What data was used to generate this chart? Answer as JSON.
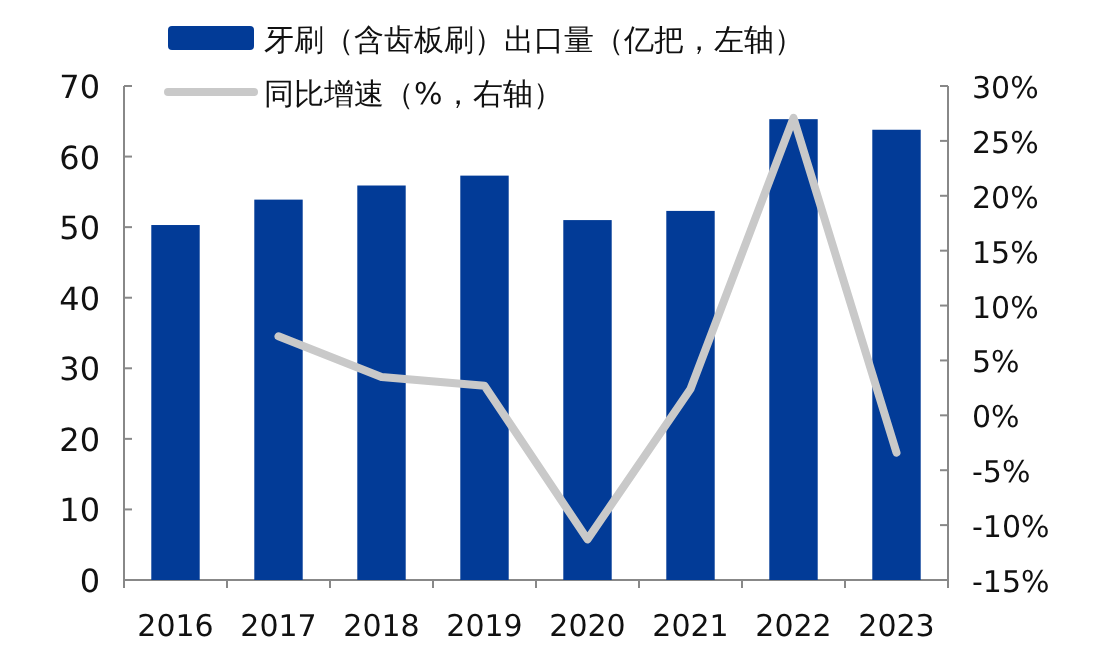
{
  "chart_data": {
    "type": "bar",
    "categories": [
      "2016",
      "2017",
      "2018",
      "2019",
      "2020",
      "2021",
      "2022",
      "2023"
    ],
    "series": [
      {
        "name": "牙刷（含齿板刷）出口量（亿把，左轴）",
        "color": "#023b97",
        "values": [
          50.3,
          53.9,
          55.9,
          57.3,
          51.0,
          52.3,
          65.3,
          63.8
        ]
      },
      {
        "name": "同比增速（%，右轴）",
        "type": "line",
        "axis": "y2",
        "color": "#c9c9c9",
        "values": [
          null,
          7.2,
          3.5,
          2.7,
          -11.3,
          2.4,
          27.1,
          -3.4
        ]
      }
    ],
    "ylim": [
      0,
      70
    ],
    "yticks": [
      0,
      10,
      20,
      30,
      40,
      50,
      60,
      70
    ],
    "y2lim": [
      -15,
      30
    ],
    "y2ticks": [
      {
        "value": -15,
        "label": "-15%"
      },
      {
        "value": -10,
        "label": "-10%"
      },
      {
        "value": -5,
        "label": "-5%"
      },
      {
        "value": 0,
        "label": "0%"
      },
      {
        "value": 5,
        "label": "5%"
      },
      {
        "value": 10,
        "label": "10%"
      },
      {
        "value": 15,
        "label": "15%"
      },
      {
        "value": 20,
        "label": "20%"
      },
      {
        "value": 25,
        "label": "25%"
      },
      {
        "value": 30,
        "label": "30%"
      }
    ],
    "legend": "top",
    "grid": false,
    "marker": "none"
  }
}
